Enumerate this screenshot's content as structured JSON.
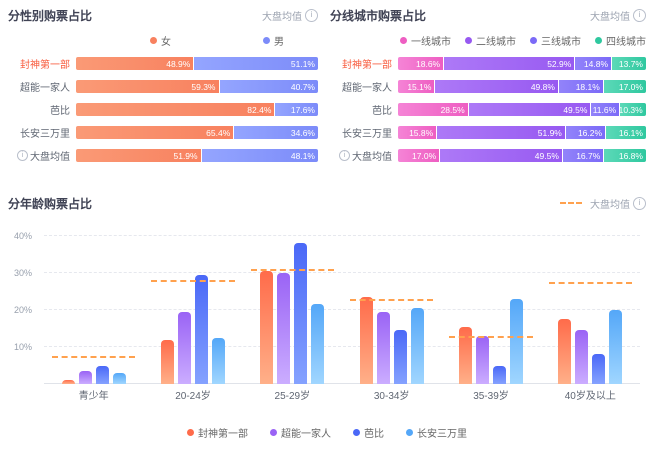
{
  "chart_data": [
    {
      "type": "bar",
      "orientation": "horizontal-stacked",
      "title": "分性别购票占比",
      "avg_link": "大盘均值",
      "legend_position": "top",
      "unit": "%",
      "categories": [
        "封神第一部",
        "超能一家人",
        "芭比",
        "长安三万里",
        "大盘均值"
      ],
      "highlight_category": "封神第一部",
      "icon_category": "大盘均值",
      "series": [
        {
          "name": "女",
          "color": "#f8815f",
          "color2": "#fa9a76",
          "values": [
            48.9,
            59.3,
            82.4,
            65.4,
            51.9
          ]
        },
        {
          "name": "男",
          "color": "#7c8bf9",
          "color2": "#94a5ff",
          "values": [
            51.1,
            40.7,
            17.6,
            34.6,
            48.1
          ]
        }
      ]
    },
    {
      "type": "bar",
      "orientation": "horizontal-stacked",
      "title": "分线城市购票占比",
      "avg_link": "大盘均值",
      "legend_position": "top",
      "unit": "%",
      "categories": [
        "封神第一部",
        "超能一家人",
        "芭比",
        "长安三万里",
        "大盘均值"
      ],
      "highlight_category": "封神第一部",
      "icon_category": "大盘均值",
      "series": [
        {
          "name": "一线城市",
          "color": "#ee5ec2",
          "color2": "#f584d6",
          "values": [
            18.6,
            15.1,
            28.5,
            15.8,
            17.0
          ]
        },
        {
          "name": "二线城市",
          "color": "#9759f1",
          "color2": "#ad79f7",
          "values": [
            52.9,
            49.8,
            49.5,
            51.9,
            49.5
          ]
        },
        {
          "name": "三线城市",
          "color": "#7b6af7",
          "color2": "#9283fa",
          "values": [
            14.8,
            18.1,
            11.6,
            16.2,
            16.7
          ]
        },
        {
          "name": "四线城市",
          "color": "#2fc89f",
          "color2": "#5cd9b8",
          "values": [
            13.7,
            17.0,
            10.3,
            16.1,
            16.8
          ]
        }
      ]
    },
    {
      "type": "bar",
      "orientation": "vertical-grouped",
      "title": "分年龄购票占比",
      "unit": "%",
      "categories": [
        "青少年",
        "20-24岁",
        "25-29岁",
        "30-34岁",
        "35-39岁",
        "40岁及以上"
      ],
      "series": [
        {
          "name": "封神第一部",
          "color": "#ff6b4a",
          "color2": "#ffb089",
          "values": [
            1,
            12,
            30.5,
            23.5,
            15.5,
            17.5
          ]
        },
        {
          "name": "超能一家人",
          "color": "#9a63f5",
          "color2": "#cbadff",
          "values": [
            3.5,
            19.5,
            30,
            19.5,
            13,
            14.5
          ]
        },
        {
          "name": "芭比",
          "color": "#4a68f7",
          "color2": "#85a2ff",
          "values": [
            5,
            29.5,
            38,
            14.5,
            5,
            8
          ]
        },
        {
          "name": "长安三万里",
          "color": "#54a7f8",
          "color2": "#a0d6ff",
          "values": [
            3,
            12.5,
            21.5,
            20.5,
            23,
            20
          ]
        }
      ],
      "average_line": {
        "name": "大盘均值",
        "color": "#ffa14e",
        "values": [
          7,
          27.5,
          30.5,
          22.5,
          12.5,
          27
        ]
      },
      "ylim": [
        0,
        40
      ],
      "yticks": [
        "10%",
        "20%",
        "30%",
        "40%"
      ],
      "ytick_values": [
        10,
        20,
        30,
        40
      ],
      "grid": "dashed-horizontal",
      "legend_position": "bottom"
    }
  ]
}
